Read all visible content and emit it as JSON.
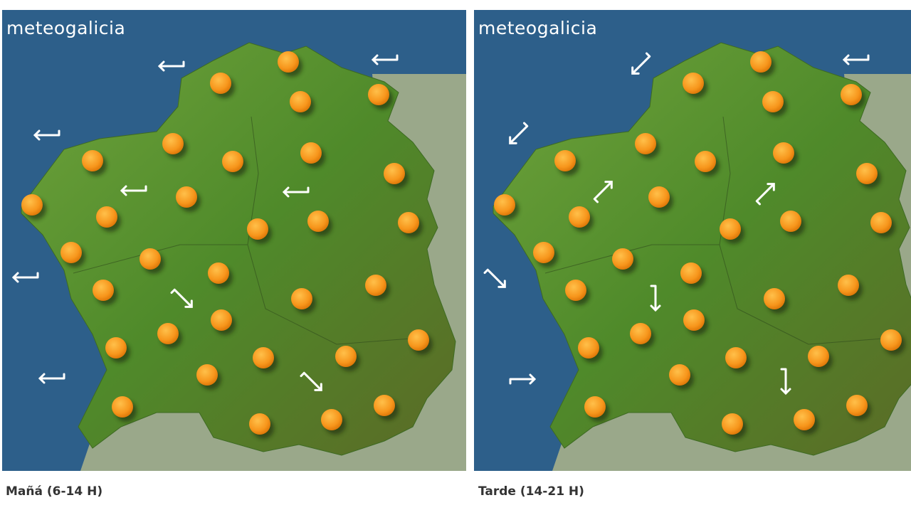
{
  "panels": [
    {
      "logo": "meteogalicia",
      "caption": "Mañá (6-14 H)"
    },
    {
      "logo": "meteogalicia",
      "caption": "Tarde (14-21 H)"
    }
  ]
}
